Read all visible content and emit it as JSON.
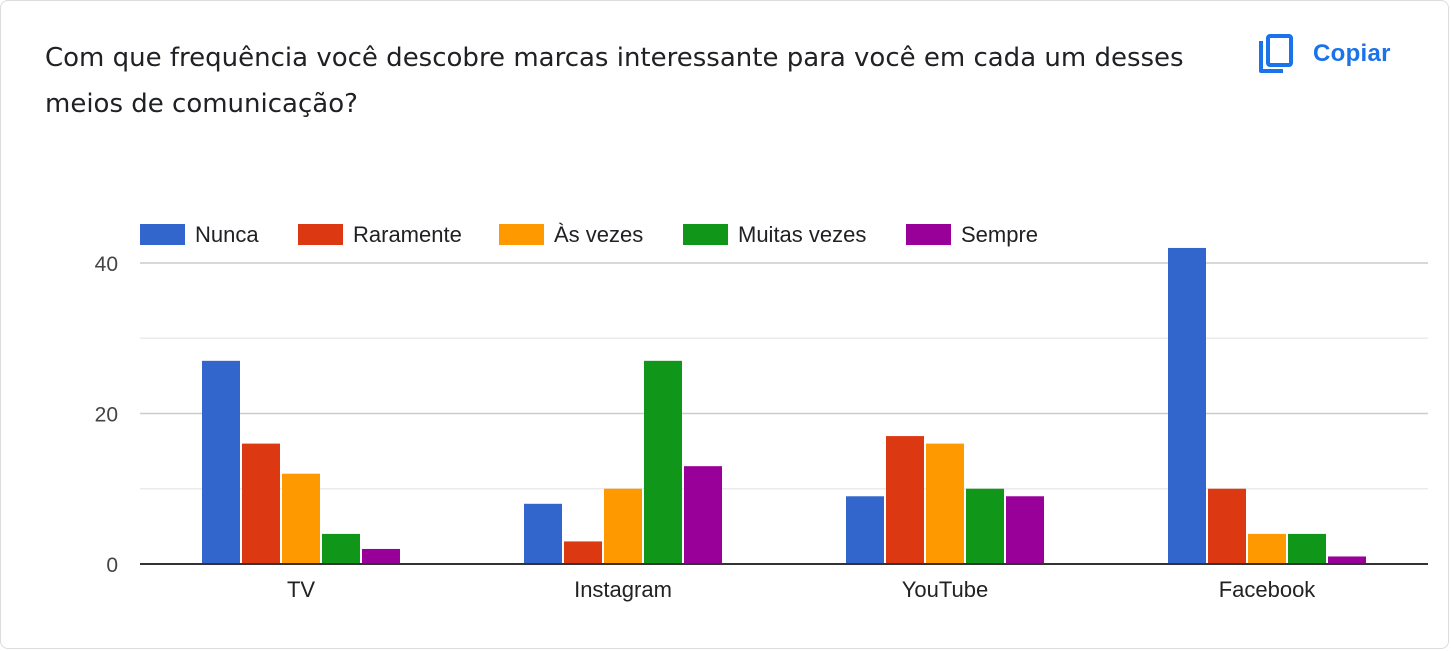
{
  "header": {
    "question": "Com que frequência você descobre marcas interessante para você em cada um desses meios de comunicação?",
    "copy_label": "Copiar"
  },
  "icons": {
    "copy": "copy-icon"
  },
  "chart_data": {
    "type": "bar",
    "categories": [
      "TV",
      "Instagram",
      "YouTube",
      "Facebook"
    ],
    "series": [
      {
        "name": "Nunca",
        "color": "#3366cc",
        "values": [
          27,
          8,
          9,
          42
        ]
      },
      {
        "name": "Raramente",
        "color": "#dc3912",
        "values": [
          16,
          3,
          17,
          10
        ]
      },
      {
        "name": "Às vezes",
        "color": "#ff9900",
        "values": [
          12,
          10,
          16,
          4
        ]
      },
      {
        "name": "Muitas vezes",
        "color": "#109618",
        "values": [
          4,
          27,
          10,
          4
        ]
      },
      {
        "name": "Sempre",
        "color": "#990099",
        "values": [
          2,
          13,
          9,
          1
        ]
      }
    ],
    "yticks": [
      0,
      20,
      40
    ],
    "ylim": [
      0,
      40
    ],
    "grid": true,
    "legend_position": "top-left"
  }
}
